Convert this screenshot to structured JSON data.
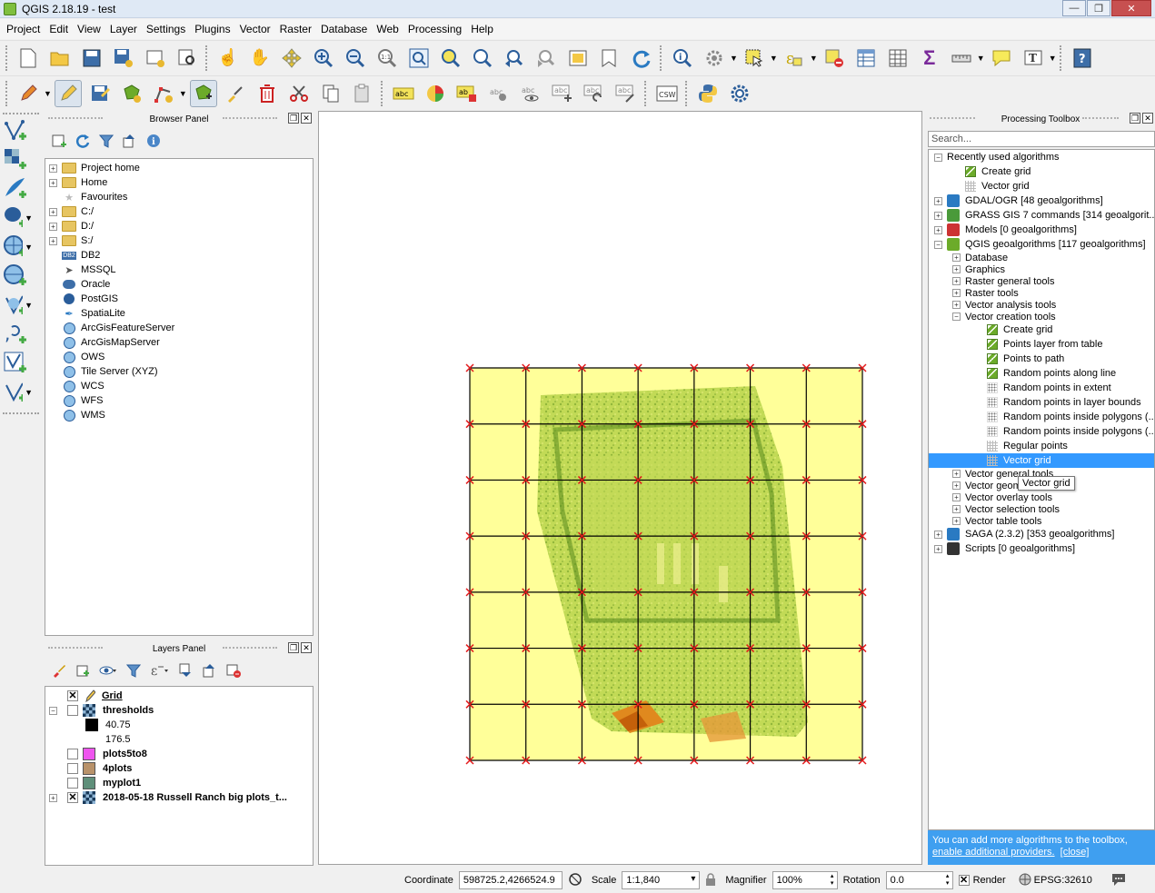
{
  "window": {
    "title": "QGIS 2.18.19 - test"
  },
  "menu": [
    "Project",
    "Edit",
    "View",
    "Layer",
    "Settings",
    "Plugins",
    "Vector",
    "Raster",
    "Database",
    "Web",
    "Processing",
    "Help"
  ],
  "browser_panel": {
    "title": "Browser Panel",
    "items": [
      {
        "label": "Project home",
        "icon": "folder-icon",
        "expandable": true
      },
      {
        "label": "Home",
        "icon": "folder-icon",
        "expandable": true
      },
      {
        "label": "Favourites",
        "icon": "star-icon",
        "expandable": false
      },
      {
        "label": "C:/",
        "icon": "folder-icon",
        "expandable": true
      },
      {
        "label": "D:/",
        "icon": "folder-icon",
        "expandable": true
      },
      {
        "label": "S:/",
        "icon": "folder-icon",
        "expandable": true
      },
      {
        "label": "DB2",
        "icon": "db2-icon",
        "expandable": false
      },
      {
        "label": "MSSQL",
        "icon": "mssql-icon",
        "expandable": false
      },
      {
        "label": "Oracle",
        "icon": "oracle-icon",
        "expandable": false
      },
      {
        "label": "PostGIS",
        "icon": "postgis-icon",
        "expandable": false
      },
      {
        "label": "SpatiaLite",
        "icon": "spatialite-icon",
        "expandable": false
      },
      {
        "label": "ArcGisFeatureServer",
        "icon": "globe-icon",
        "expandable": false
      },
      {
        "label": "ArcGisMapServer",
        "icon": "globe-icon",
        "expandable": false
      },
      {
        "label": "OWS",
        "icon": "globe-icon",
        "expandable": false
      },
      {
        "label": "Tile Server (XYZ)",
        "icon": "globe-icon",
        "expandable": false
      },
      {
        "label": "WCS",
        "icon": "globe-icon",
        "expandable": false
      },
      {
        "label": "WFS",
        "icon": "globe-icon",
        "expandable": false
      },
      {
        "label": "WMS",
        "icon": "globe-icon",
        "expandable": false
      }
    ]
  },
  "layers_panel": {
    "title": "Layers Panel",
    "layers": [
      {
        "name": "Grid",
        "checked": true,
        "style": "underline",
        "icon": "pencil-icon"
      },
      {
        "name": "thresholds",
        "checked": false,
        "icon": "raster-icon",
        "legend": [
          "40.75",
          "176.5"
        ]
      },
      {
        "name": "plots5to8",
        "checked": false,
        "swatch": "#ee55ee"
      },
      {
        "name": "4plots",
        "checked": false,
        "swatch": "#b8926a"
      },
      {
        "name": "myplot1",
        "checked": false,
        "swatch": "#5f8f7a"
      },
      {
        "name": "2018-05-18 Russell Ranch big plots_t...",
        "checked": true,
        "icon": "raster-icon"
      }
    ]
  },
  "processing": {
    "title": "Processing Toolbox",
    "search_placeholder": "Search...",
    "recent": {
      "label": "Recently used algorithms",
      "items": [
        "Create grid",
        "Vector grid"
      ]
    },
    "providers": [
      "GDAL/OGR [48 geoalgorithms]",
      "GRASS GIS 7 commands [314 geoalgorit...",
      "Models [0 geoalgorithms]",
      "QGIS geoalgorithms [117 geoalgorithms]"
    ],
    "qgis_groups_before": [
      "Database",
      "Graphics",
      "Raster general tools",
      "Raster tools",
      "Vector analysis tools",
      "Vector creation tools"
    ],
    "vector_creation_items": [
      {
        "label": "Create grid",
        "icon": "green"
      },
      {
        "label": "Points layer from table",
        "icon": "green"
      },
      {
        "label": "Points to path",
        "icon": "green"
      },
      {
        "label": "Random points along line",
        "icon": "green"
      },
      {
        "label": "Random points in extent",
        "icon": "dots"
      },
      {
        "label": "Random points in layer bounds",
        "icon": "dots"
      },
      {
        "label": "Random points inside polygons (...",
        "icon": "dots"
      },
      {
        "label": "Random points inside polygons (...",
        "icon": "dots"
      },
      {
        "label": "Regular points",
        "icon": "grid"
      },
      {
        "label": "Vector grid",
        "icon": "grid",
        "selected": true
      }
    ],
    "qgis_groups_after": [
      "Vector general tools",
      "Vector geom",
      "Vector overlay tools",
      "Vector selection tools",
      "Vector table tools"
    ],
    "providers_after": [
      "SAGA (2.3.2) [353 geoalgorithms]",
      "Scripts [0 geoalgorithms]"
    ],
    "tooltip": "Vector grid",
    "info_text": "You can add more algorithms to the toolbox,",
    "info_link1": "enable additional providers.",
    "info_link2": "[close]"
  },
  "status": {
    "coordinate_label": "Coordinate",
    "coordinate": "598725.2,4266524.9",
    "scale_label": "Scale",
    "scale": "1:1,840",
    "magnifier_label": "Magnifier",
    "magnifier": "100%",
    "rotation_label": "Rotation",
    "rotation": "0.0",
    "render_label": "Render",
    "epsg": "EPSG:32610"
  },
  "colors": {
    "grid_fill": "#ffff99",
    "grid_line": "#000000",
    "grid_vertex": "#e31a1c",
    "selection": "#3399ff",
    "info_bar": "#3f9ff0"
  }
}
